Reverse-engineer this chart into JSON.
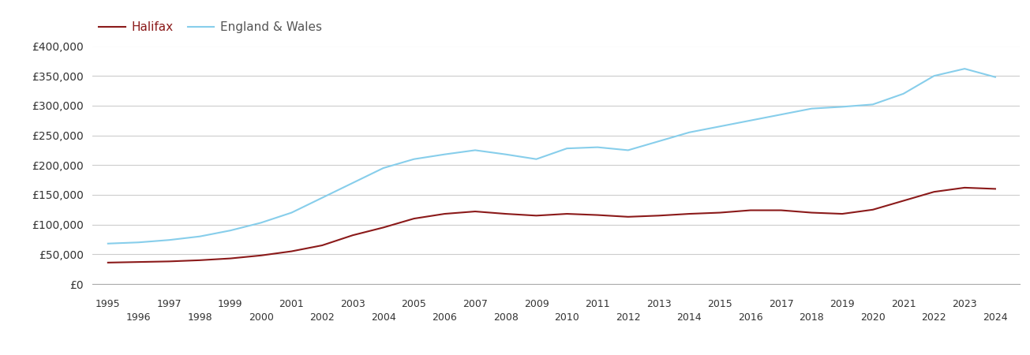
{
  "halifax": {
    "years": [
      1995,
      1996,
      1997,
      1998,
      1999,
      2000,
      2001,
      2002,
      2003,
      2004,
      2005,
      2006,
      2007,
      2008,
      2009,
      2010,
      2011,
      2012,
      2013,
      2014,
      2015,
      2016,
      2017,
      2018,
      2019,
      2020,
      2021,
      2022,
      2023,
      2024
    ],
    "values": [
      36000,
      37000,
      38000,
      40000,
      43000,
      48000,
      55000,
      65000,
      82000,
      95000,
      110000,
      118000,
      122000,
      118000,
      115000,
      118000,
      116000,
      113000,
      115000,
      118000,
      120000,
      124000,
      124000,
      120000,
      118000,
      125000,
      140000,
      155000,
      162000,
      160000
    ]
  },
  "england_wales": {
    "years": [
      1995,
      1996,
      1997,
      1998,
      1999,
      2000,
      2001,
      2002,
      2003,
      2004,
      2005,
      2006,
      2007,
      2008,
      2009,
      2010,
      2011,
      2012,
      2013,
      2014,
      2015,
      2016,
      2017,
      2018,
      2019,
      2020,
      2021,
      2022,
      2023,
      2024
    ],
    "values": [
      68000,
      70000,
      74000,
      80000,
      90000,
      103000,
      120000,
      145000,
      170000,
      195000,
      210000,
      218000,
      225000,
      218000,
      210000,
      228000,
      230000,
      225000,
      240000,
      255000,
      265000,
      275000,
      285000,
      295000,
      298000,
      302000,
      320000,
      350000,
      362000,
      348000
    ]
  },
  "halifax_color": "#8B1A1A",
  "england_wales_color": "#87CEEB",
  "background_color": "#ffffff",
  "grid_color": "#cccccc",
  "ylim": [
    0,
    400000
  ],
  "ytick_values": [
    0,
    50000,
    100000,
    150000,
    200000,
    250000,
    300000,
    350000,
    400000
  ],
  "odd_xticks": [
    1995,
    1997,
    1999,
    2001,
    2003,
    2005,
    2007,
    2009,
    2011,
    2013,
    2015,
    2017,
    2019,
    2021,
    2023
  ],
  "even_xticks": [
    1996,
    1998,
    2000,
    2002,
    2004,
    2006,
    2008,
    2010,
    2012,
    2014,
    2016,
    2018,
    2020,
    2022,
    2024
  ],
  "legend_halifax": "Halifax",
  "legend_ew": "England & Wales",
  "line_width": 1.5,
  "xlim_left": 1994.5,
  "xlim_right": 2024.8
}
